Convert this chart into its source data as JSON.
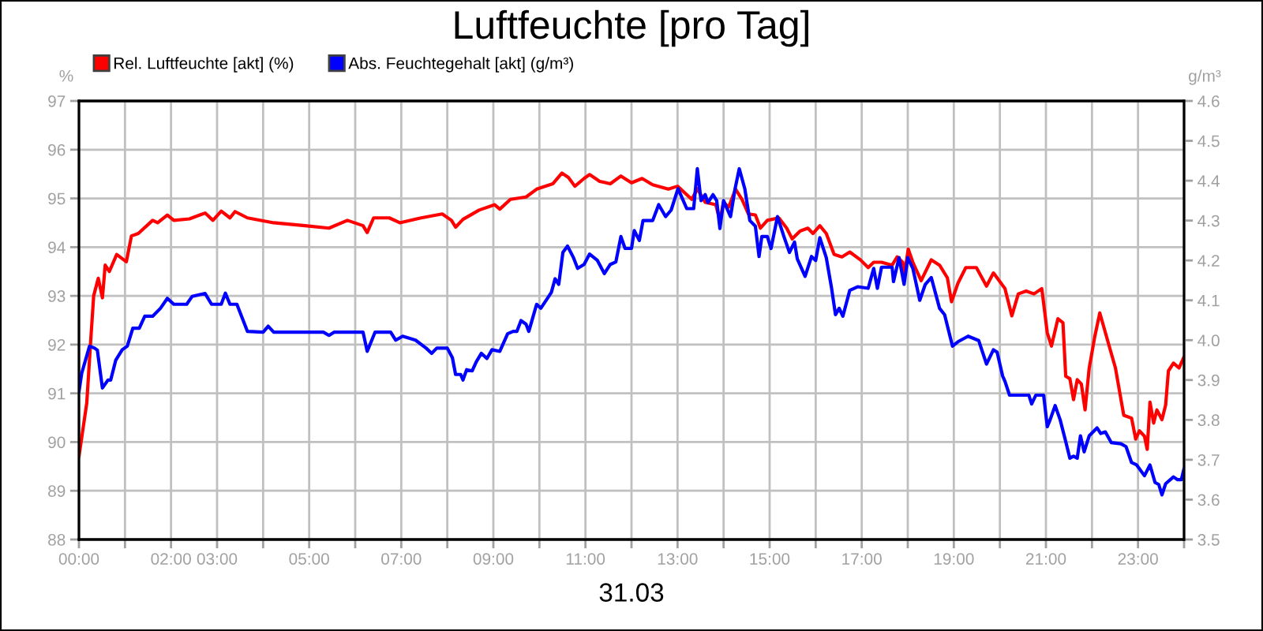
{
  "chart_data": {
    "type": "line",
    "title": "Luftfeuchte [pro Tag]",
    "xlabel": "31.03",
    "ylabel": "%",
    "y2label": "g/m³",
    "xlim": [
      0,
      24
    ],
    "xticks": [
      {
        "value": 0,
        "label": "00:00"
      },
      {
        "value": 1,
        "label": null
      },
      {
        "value": 2,
        "label": "02:00"
      },
      {
        "value": 3,
        "label": "03:00"
      },
      {
        "value": 4,
        "label": null
      },
      {
        "value": 5,
        "label": "05:00"
      },
      {
        "value": 6,
        "label": null
      },
      {
        "value": 7,
        "label": "07:00"
      },
      {
        "value": 8,
        "label": null
      },
      {
        "value": 9,
        "label": "09:00"
      },
      {
        "value": 10,
        "label": null
      },
      {
        "value": 11,
        "label": "11:00"
      },
      {
        "value": 12,
        "label": null
      },
      {
        "value": 13,
        "label": "13:00"
      },
      {
        "value": 14,
        "label": null
      },
      {
        "value": 15,
        "label": "15:00"
      },
      {
        "value": 16,
        "label": null
      },
      {
        "value": 17,
        "label": "17:00"
      },
      {
        "value": 18,
        "label": null
      },
      {
        "value": 19,
        "label": "19:00"
      },
      {
        "value": 20,
        "label": null
      },
      {
        "value": 21,
        "label": "21:00"
      },
      {
        "value": 22,
        "label": null
      },
      {
        "value": 23,
        "label": "23:00"
      },
      {
        "value": 24,
        "label": null
      }
    ],
    "ylim": [
      88,
      97
    ],
    "yticks": [
      88,
      89,
      90,
      91,
      92,
      93,
      94,
      95,
      96,
      97
    ],
    "y2lim": [
      3.5,
      4.6
    ],
    "y2ticks": [
      3.5,
      3.6,
      3.7,
      3.8,
      3.9,
      {
        "value": 4.0,
        "label": "4.0"
      },
      4.1,
      4.2,
      4.3,
      4.4,
      4.5,
      4.6
    ],
    "grid": true,
    "legend": "top left",
    "series": [
      {
        "name": "Rel. Luftfeuchte [akt] (%)",
        "color": "#ff0000",
        "x": [
          0,
          0.17,
          0.25,
          0.32,
          0.42,
          0.51,
          0.57,
          0.66,
          0.82,
          1.03,
          1.14,
          1.29,
          1.6,
          1.71,
          1.92,
          2.06,
          2.4,
          2.74,
          2.91,
          3.09,
          3.28,
          3.39,
          3.66,
          4.23,
          4.91,
          5.43,
          5.83,
          6.17,
          6.26,
          6.4,
          6.74,
          6.97,
          7.43,
          7.89,
          8.09,
          8.18,
          8.34,
          8.69,
          9.03,
          9.14,
          9.37,
          9.71,
          9.94,
          10.29,
          10.49,
          10.63,
          10.77,
          10.97,
          11.09,
          11.31,
          11.54,
          11.77,
          12.0,
          12.23,
          12.46,
          12.8,
          13.0,
          13.31,
          13.43,
          13.6,
          13.83,
          13.92,
          14.0,
          14.11,
          14.26,
          14.4,
          14.54,
          14.69,
          14.8,
          14.95,
          15.2,
          15.37,
          15.49,
          15.66,
          15.83,
          15.94,
          16.09,
          16.23,
          16.4,
          16.57,
          16.74,
          16.97,
          17.14,
          17.26,
          17.43,
          17.66,
          17.77,
          17.89,
          17.92,
          18.01,
          18.11,
          18.29,
          18.51,
          18.69,
          18.86,
          18.95,
          19.09,
          19.26,
          19.49,
          19.71,
          19.86,
          20.11,
          20.26,
          20.4,
          20.57,
          20.74,
          20.91,
          21.03,
          21.12,
          21.26,
          21.37,
          21.43,
          21.52,
          21.6,
          21.68,
          21.77,
          21.85,
          21.94,
          22.06,
          22.17,
          22.38,
          22.51,
          22.69,
          22.86,
          22.95,
          23.03,
          23.14,
          23.2,
          23.26,
          23.34,
          23.41,
          23.52,
          23.6,
          23.66,
          23.77,
          23.89,
          24.0
        ],
        "values": [
          89.7,
          90.8,
          92.0,
          93.0,
          93.36,
          92.96,
          93.63,
          93.5,
          93.85,
          93.7,
          94.23,
          94.28,
          94.55,
          94.5,
          94.66,
          94.55,
          94.58,
          94.7,
          94.55,
          94.74,
          94.6,
          94.73,
          94.6,
          94.5,
          94.44,
          94.39,
          94.55,
          94.44,
          94.3,
          94.6,
          94.6,
          94.5,
          94.6,
          94.68,
          94.55,
          94.41,
          94.57,
          94.76,
          94.87,
          94.78,
          94.98,
          95.03,
          95.19,
          95.3,
          95.52,
          95.43,
          95.25,
          95.41,
          95.49,
          95.35,
          95.3,
          95.46,
          95.32,
          95.41,
          95.28,
          95.19,
          95.25,
          94.98,
          95.2,
          94.92,
          94.87,
          94.55,
          94.92,
          94.82,
          95.19,
          94.98,
          94.68,
          94.66,
          94.39,
          94.55,
          94.6,
          94.39,
          94.17,
          94.33,
          94.39,
          94.28,
          94.44,
          94.28,
          93.85,
          93.8,
          93.9,
          93.74,
          93.58,
          93.69,
          93.69,
          93.63,
          93.8,
          93.69,
          93.39,
          93.96,
          93.69,
          93.31,
          93.74,
          93.63,
          93.37,
          92.88,
          93.26,
          93.58,
          93.58,
          93.2,
          93.47,
          93.15,
          92.59,
          93.04,
          93.1,
          93.04,
          93.15,
          92.24,
          91.97,
          92.53,
          92.45,
          91.35,
          91.3,
          90.87,
          91.28,
          91.19,
          90.66,
          91.52,
          92.16,
          92.65,
          91.95,
          91.52,
          90.55,
          90.49,
          90.06,
          90.23,
          90.12,
          89.85,
          90.82,
          90.39,
          90.66,
          90.46,
          90.76,
          91.46,
          91.62,
          91.52,
          91.75
        ]
      },
      {
        "name": "Abs. Feuchtegehalt [akt] (g/m³)",
        "color": "#0000ff",
        "axis": "y2",
        "x": [
          0,
          0.06,
          0.23,
          0.34,
          0.4,
          0.51,
          0.63,
          0.69,
          0.8,
          0.94,
          1.05,
          1.17,
          1.31,
          1.43,
          1.6,
          1.77,
          1.92,
          2.06,
          2.34,
          2.46,
          2.74,
          2.88,
          3.09,
          3.18,
          3.28,
          3.43,
          3.66,
          4.0,
          4.11,
          4.23,
          5.31,
          5.43,
          5.54,
          6.17,
          6.26,
          6.43,
          6.77,
          6.88,
          7.03,
          7.31,
          7.54,
          7.66,
          7.77,
          8.0,
          8.11,
          8.18,
          8.29,
          8.34,
          8.42,
          8.54,
          8.63,
          8.74,
          8.86,
          8.97,
          9.14,
          9.31,
          9.43,
          9.51,
          9.6,
          9.71,
          9.77,
          9.89,
          9.94,
          10.03,
          10.17,
          10.26,
          10.34,
          10.42,
          10.51,
          10.61,
          10.74,
          10.83,
          10.97,
          11.09,
          11.26,
          11.41,
          11.54,
          11.66,
          11.77,
          11.86,
          12.0,
          12.06,
          12.17,
          12.25,
          12.46,
          12.59,
          12.74,
          12.86,
          13.01,
          13.2,
          13.35,
          13.43,
          13.51,
          13.6,
          13.66,
          13.77,
          13.85,
          13.92,
          14.0,
          14.15,
          14.25,
          14.34,
          14.46,
          14.57,
          14.69,
          14.77,
          14.83,
          14.95,
          15.03,
          15.17,
          15.31,
          15.43,
          15.54,
          15.6,
          15.77,
          15.91,
          16.0,
          16.09,
          16.23,
          16.34,
          16.43,
          16.51,
          16.59,
          16.74,
          16.91,
          17.14,
          17.26,
          17.34,
          17.43,
          17.66,
          17.69,
          17.81,
          17.92,
          18.0,
          18.11,
          18.26,
          18.38,
          18.51,
          18.69,
          18.8,
          18.97,
          19.09,
          19.31,
          19.54,
          19.71,
          19.86,
          19.94,
          20.06,
          20.11,
          20.21,
          20.63,
          20.69,
          20.78,
          20.95,
          21.03,
          21.09,
          21.2,
          21.31,
          21.43,
          21.52,
          21.6,
          21.68,
          21.75,
          21.83,
          21.94,
          22.11,
          22.19,
          22.29,
          22.42,
          22.63,
          22.74,
          22.86,
          22.97,
          23.14,
          23.26,
          23.37,
          23.45,
          23.52,
          23.6,
          23.77,
          23.86,
          23.94,
          24.0
        ],
        "values": [
          3.87,
          3.917,
          3.985,
          3.98,
          3.975,
          3.88,
          3.9,
          3.9,
          3.95,
          3.976,
          3.985,
          4.03,
          4.03,
          4.06,
          4.06,
          4.08,
          4.105,
          4.09,
          4.09,
          4.11,
          4.117,
          4.09,
          4.09,
          4.118,
          4.09,
          4.09,
          4.022,
          4.02,
          4.035,
          4.02,
          4.02,
          4.012,
          4.02,
          4.02,
          3.972,
          4.02,
          4.02,
          4.0,
          4.01,
          4.0,
          3.98,
          3.967,
          3.98,
          3.98,
          3.956,
          3.914,
          3.914,
          3.9,
          3.926,
          3.923,
          3.946,
          3.967,
          3.954,
          3.976,
          3.972,
          4.016,
          4.022,
          4.022,
          4.049,
          4.04,
          4.022,
          4.07,
          4.09,
          4.08,
          4.104,
          4.12,
          4.154,
          4.14,
          4.22,
          4.236,
          4.207,
          4.18,
          4.19,
          4.216,
          4.2,
          4.167,
          4.19,
          4.196,
          4.26,
          4.23,
          4.23,
          4.275,
          4.25,
          4.3,
          4.3,
          4.34,
          4.31,
          4.326,
          4.38,
          4.33,
          4.33,
          4.43,
          4.35,
          4.365,
          4.345,
          4.365,
          4.35,
          4.28,
          4.35,
          4.31,
          4.38,
          4.43,
          4.38,
          4.3,
          4.286,
          4.21,
          4.26,
          4.26,
          4.23,
          4.31,
          4.26,
          4.22,
          4.246,
          4.204,
          4.16,
          4.21,
          4.2,
          4.257,
          4.207,
          4.134,
          4.064,
          4.08,
          4.06,
          4.125,
          4.134,
          4.13,
          4.18,
          4.13,
          4.183,
          4.183,
          4.147,
          4.207,
          4.14,
          4.207,
          4.18,
          4.1,
          4.14,
          4.157,
          4.08,
          4.064,
          3.985,
          3.996,
          4.01,
          3.999,
          3.94,
          3.976,
          3.97,
          3.91,
          3.897,
          3.862,
          3.862,
          3.84,
          3.862,
          3.862,
          3.783,
          3.8,
          3.836,
          3.8,
          3.746,
          3.704,
          3.709,
          3.704,
          3.76,
          3.72,
          3.76,
          3.78,
          3.766,
          3.77,
          3.743,
          3.74,
          3.733,
          3.693,
          3.687,
          3.66,
          3.687,
          3.643,
          3.638,
          3.612,
          3.64,
          3.657,
          3.65,
          3.65,
          3.678
        ]
      }
    ]
  }
}
